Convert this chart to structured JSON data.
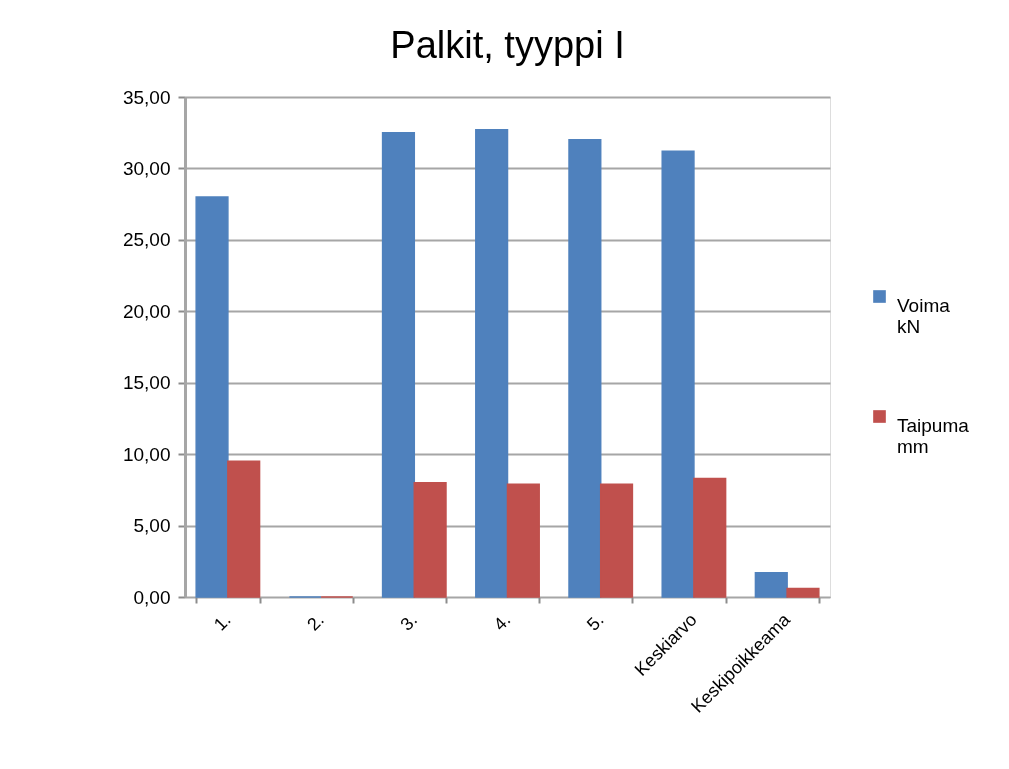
{
  "chart_data": {
    "type": "bar",
    "title": "Palkit, tyyppi I",
    "categories": [
      "1.",
      "2.",
      "3.",
      "4.",
      "5.",
      null,
      "Keskiarvo",
      "Keskipoikkeama"
    ],
    "series": [
      {
        "name": "Voima kN",
        "color": "#4f81bd",
        "values": [
          28.0,
          0,
          32.5,
          32.7,
          32.0,
          null,
          31.2,
          1.7
        ]
      },
      {
        "name": "Taipuma mm",
        "color": "#c0504d",
        "values": [
          9.5,
          0,
          8.0,
          7.9,
          7.9,
          null,
          8.3,
          0.6
        ]
      }
    ],
    "ylim": [
      0,
      35
    ],
    "yticks": [
      {
        "value": 0,
        "label": "0,00"
      },
      {
        "value": 5,
        "label": "5,00"
      },
      {
        "value": 10,
        "label": "10,00"
      },
      {
        "value": 15,
        "label": "15,00"
      },
      {
        "value": 20,
        "label": "20,00"
      },
      {
        "value": 25,
        "label": "25,00"
      },
      {
        "value": 30,
        "label": "30,00"
      },
      {
        "value": 35,
        "label": "35,00"
      }
    ],
    "grid": "y",
    "legend": "right"
  }
}
